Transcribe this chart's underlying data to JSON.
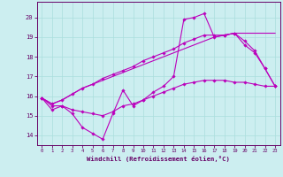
{
  "background_color": "#cceef0",
  "grid_color": "#aadddd",
  "line_color": "#bb00bb",
  "marker_color": "#bb00bb",
  "xlabel": "Windchill (Refroidissement éolien,°C)",
  "xlabel_color": "#660066",
  "tick_color": "#660066",
  "xlim": [
    -0.5,
    23.5
  ],
  "ylim": [
    13.5,
    20.8
  ],
  "yticks": [
    14,
    15,
    16,
    17,
    18,
    19,
    20
  ],
  "xticks": [
    0,
    1,
    2,
    3,
    4,
    5,
    6,
    7,
    8,
    9,
    10,
    11,
    12,
    13,
    14,
    15,
    16,
    17,
    18,
    19,
    20,
    21,
    22,
    23
  ],
  "series": [
    [
      15.9,
      15.3,
      15.5,
      15.1,
      14.4,
      14.1,
      13.8,
      15.1,
      16.3,
      15.5,
      15.8,
      16.2,
      16.5,
      17.0,
      19.9,
      20.0,
      20.2,
      19.0,
      19.1,
      19.2,
      18.6,
      18.2,
      17.4,
      16.5
    ],
    [
      15.9,
      15.6,
      15.8,
      16.1,
      16.4,
      16.6,
      16.8,
      17.0,
      17.2,
      17.4,
      17.6,
      17.8,
      18.0,
      18.2,
      18.4,
      18.6,
      18.8,
      19.0,
      19.1,
      19.2,
      19.2,
      19.2,
      19.2,
      19.2
    ],
    [
      15.9,
      15.6,
      15.8,
      16.1,
      16.4,
      16.6,
      16.9,
      17.1,
      17.3,
      17.5,
      17.8,
      18.0,
      18.2,
      18.4,
      18.7,
      18.9,
      19.1,
      19.1,
      19.1,
      19.2,
      18.8,
      18.3,
      17.4,
      16.5
    ],
    [
      15.9,
      15.5,
      15.5,
      15.3,
      15.2,
      15.1,
      15.0,
      15.2,
      15.5,
      15.6,
      15.8,
      16.0,
      16.2,
      16.4,
      16.6,
      16.7,
      16.8,
      16.8,
      16.8,
      16.7,
      16.7,
      16.6,
      16.5,
      16.5
    ]
  ],
  "has_markers": [
    true,
    false,
    true,
    true
  ]
}
